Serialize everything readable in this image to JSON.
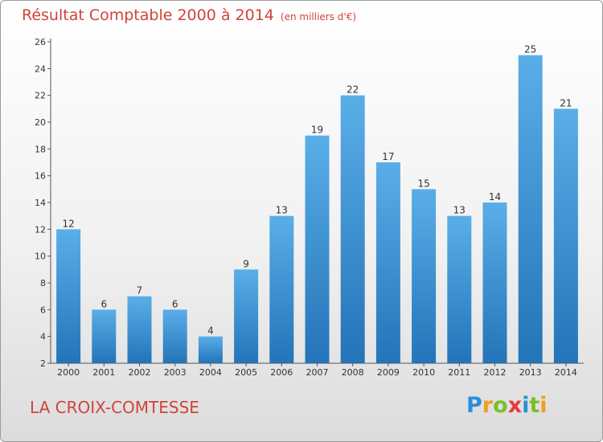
{
  "chart_data": {
    "type": "bar",
    "title": "Résultat Comptable 2000 à 2014",
    "subtitle": "(en milliers d'€)",
    "categories": [
      "2000",
      "2001",
      "2002",
      "2003",
      "2004",
      "2005",
      "2006",
      "2007",
      "2008",
      "2009",
      "2010",
      "2011",
      "2012",
      "2013",
      "2014"
    ],
    "values": [
      12,
      6,
      7,
      6,
      4,
      9,
      13,
      19,
      22,
      17,
      15,
      13,
      14,
      25,
      21
    ],
    "ylim": [
      2,
      26
    ],
    "yticks": [
      2,
      4,
      6,
      8,
      10,
      12,
      14,
      16,
      18,
      20,
      22,
      24,
      26
    ],
    "xlabel": "",
    "ylabel": "",
    "grid": false,
    "bar_color": "#3d8fd1"
  },
  "commune": "LA CROIX-COMTESSE",
  "logo": {
    "letters": [
      "P",
      "r",
      "o",
      "x",
      "i",
      "t",
      "i"
    ],
    "colors": [
      "#2a8fd6",
      "#f0a01e",
      "#7bbf2a",
      "#e23c3c",
      "#2a8fd6",
      "#7bbf2a",
      "#f0a01e"
    ]
  }
}
